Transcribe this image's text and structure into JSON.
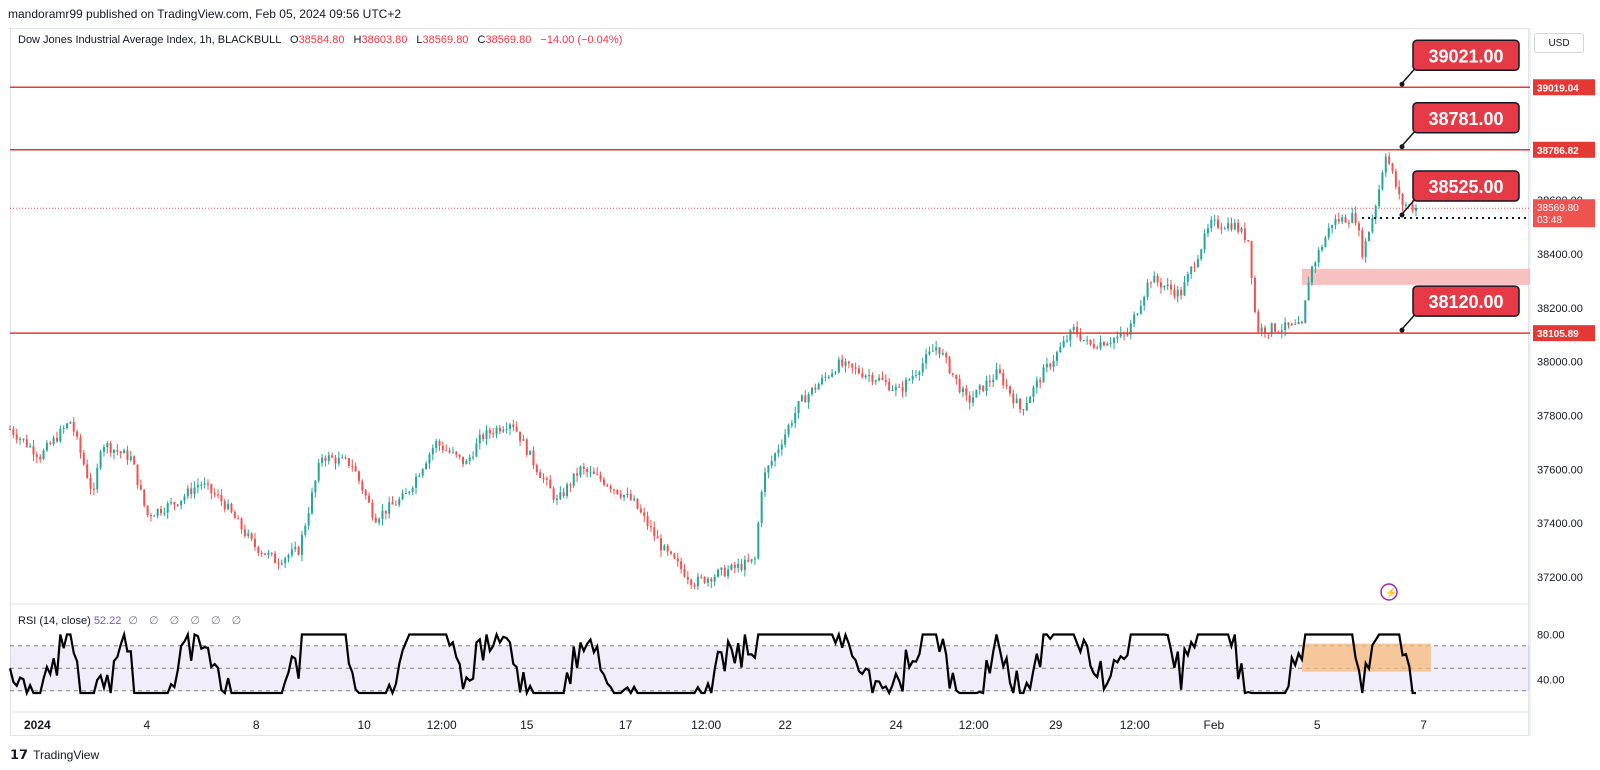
{
  "header": {
    "published": "mandoramr99 published on TradingView.com, Feb 05, 2024 09:56 UTC+2"
  },
  "legend": {
    "symbol": "Dow Jones Industrial Average Index, 1h, BLACKBULL",
    "o_label": "O",
    "o_value": "38584.80",
    "h_label": "H",
    "h_value": "38603.80",
    "l_label": "L",
    "l_value": "38569.80",
    "c_label": "C",
    "c_value": "38569.80",
    "change": "−14.00 (−0.04%)"
  },
  "currency": "USD",
  "rsi": {
    "label": "RSI (14, close)",
    "value": "52.22",
    "zeros": "∅ ∅ ∅ ∅ ∅ ∅"
  },
  "footer": {
    "brand": "TradingView"
  },
  "colors": {
    "up": "#26a69a",
    "down": "#ef5350",
    "level": "#e53935",
    "rsiBand": "#7e57c2"
  },
  "chart_data": {
    "type": "candlestick",
    "title": "Dow Jones Industrial Average Index, 1h, BLACKBULL",
    "ylim": [
      37100,
      39150
    ],
    "y_ticks": [
      37200,
      37400,
      37600,
      37800,
      38000,
      38200,
      38400,
      38600
    ],
    "x_ticks": [
      "2024",
      "4",
      "8",
      "10",
      "12:00",
      "15",
      "17",
      "12:00",
      "22",
      "24",
      "12:00",
      "29",
      "12:00",
      "Feb",
      "5",
      "7"
    ],
    "price_path": [
      [
        0,
        37750
      ],
      [
        0.02,
        37650
      ],
      [
        0.04,
        37780
      ],
      [
        0.055,
        37500
      ],
      [
        0.06,
        37700
      ],
      [
        0.08,
        37640
      ],
      [
        0.09,
        37430
      ],
      [
        0.11,
        37480
      ],
      [
        0.125,
        37550
      ],
      [
        0.14,
        37480
      ],
      [
        0.16,
        37320
      ],
      [
        0.175,
        37260
      ],
      [
        0.19,
        37300
      ],
      [
        0.205,
        37650
      ],
      [
        0.225,
        37620
      ],
      [
        0.24,
        37420
      ],
      [
        0.26,
        37500
      ],
      [
        0.28,
        37700
      ],
      [
        0.3,
        37620
      ],
      [
        0.31,
        37720
      ],
      [
        0.33,
        37780
      ],
      [
        0.345,
        37620
      ],
      [
        0.36,
        37480
      ],
      [
        0.375,
        37600
      ],
      [
        0.39,
        37560
      ],
      [
        0.41,
        37480
      ],
      [
        0.43,
        37300
      ],
      [
        0.45,
        37180
      ],
      [
        0.47,
        37220
      ],
      [
        0.49,
        37260
      ],
      [
        0.495,
        37560
      ],
      [
        0.52,
        37850
      ],
      [
        0.545,
        37990
      ],
      [
        0.57,
        37940
      ],
      [
        0.585,
        37890
      ],
      [
        0.61,
        38060
      ],
      [
        0.63,
        37850
      ],
      [
        0.65,
        37960
      ],
      [
        0.665,
        37820
      ],
      [
        0.68,
        37960
      ],
      [
        0.7,
        38120
      ],
      [
        0.71,
        38060
      ],
      [
        0.735,
        38100
      ],
      [
        0.75,
        38310
      ],
      [
        0.77,
        38250
      ],
      [
        0.79,
        38510
      ],
      [
        0.805,
        38510
      ],
      [
        0.815,
        38450
      ],
      [
        0.82,
        38120
      ],
      [
        0.85,
        38130
      ],
      [
        0.855,
        38330
      ],
      [
        0.87,
        38520
      ],
      [
        0.885,
        38540
      ],
      [
        0.89,
        38400
      ],
      [
        0.9,
        38620
      ],
      [
        0.905,
        38780
      ],
      [
        0.915,
        38590
      ],
      [
        0.925,
        38570
      ]
    ],
    "levels": [
      {
        "name": "39021.00",
        "value": 39019.04,
        "axis_label": "39019.04"
      },
      {
        "name": "38781.00",
        "value": 38786.82,
        "axis_label": "38786.82"
      },
      {
        "name": "38525.00",
        "value": 38533.65,
        "axis_label": "38533.65",
        "dotted": true
      },
      {
        "name": "38120.00",
        "value": 38105.89,
        "axis_label": "38105.89"
      }
    ],
    "current_price": {
      "value": 38569.8,
      "label": "38569.80",
      "countdown": "03:48"
    },
    "zone": {
      "from": 38285,
      "to": 38345
    },
    "rsi": {
      "value": 52.22,
      "upper": 70,
      "lower": 30,
      "ticks": [
        80,
        40
      ]
    }
  }
}
